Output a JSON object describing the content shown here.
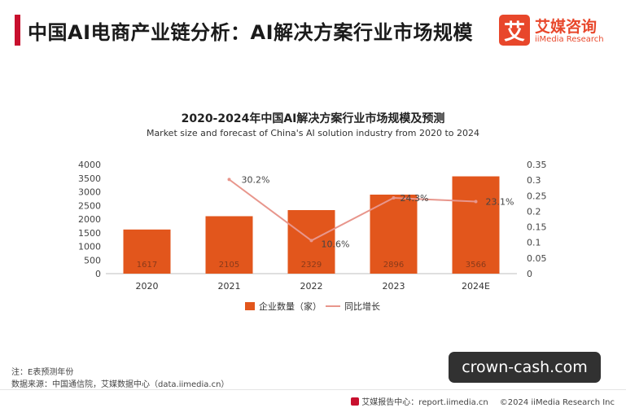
{
  "header": {
    "title": "中国AI电商产业链分析：AI解决方案行业市场规模",
    "logo_mark": "艾",
    "logo_cn": "艾媒咨询",
    "logo_en": "iiMedia Research"
  },
  "colors": {
    "accent": "#c8102e",
    "bar": "#e2561c",
    "line": "#e8968c",
    "logo": "#e8472b"
  },
  "chart_data": {
    "type": "bar",
    "title": "2020-2024年中国AI解决方案行业市场规模及预测",
    "subtitle": "Market size and forecast of China's AI solution industry from 2020 to 2024",
    "categories": [
      "2020",
      "2021",
      "2022",
      "2023",
      "2024E"
    ],
    "series": [
      {
        "name": "企业数量（家）",
        "type": "bar",
        "axis": "left",
        "values": [
          1617,
          2105,
          2329,
          2896,
          3566
        ],
        "labels": [
          "1617",
          "2105",
          "2329",
          "2896",
          "3566"
        ]
      },
      {
        "name": "同比增长",
        "type": "line",
        "axis": "right",
        "values": [
          null,
          0.302,
          0.106,
          0.243,
          0.231
        ],
        "labels": [
          "",
          "30.2%",
          "10.6%",
          "24.3%",
          "23.1%"
        ]
      }
    ],
    "ylim_left": [
      0,
      4000
    ],
    "yticks_left": [
      "0",
      "500",
      "1000",
      "1500",
      "2000",
      "2500",
      "3000",
      "3500",
      "4000"
    ],
    "ylim_right": [
      0,
      0.35
    ],
    "yticks_right": [
      "0",
      "0.05",
      "0.1",
      "0.15",
      "0.2",
      "0.25",
      "0.3",
      "0.35"
    ],
    "grid": false,
    "legend_position": "bottom"
  },
  "notes": {
    "line1": "注：E表预测年份",
    "line2": "数据来源：中国通信院，艾媒数据中心（data.iimedia.cn）"
  },
  "footer": {
    "report": "艾媒报告中心：report.iimedia.cn",
    "copyright": "©2024  iiMedia Research  Inc"
  },
  "watermark": "crown-cash.com"
}
